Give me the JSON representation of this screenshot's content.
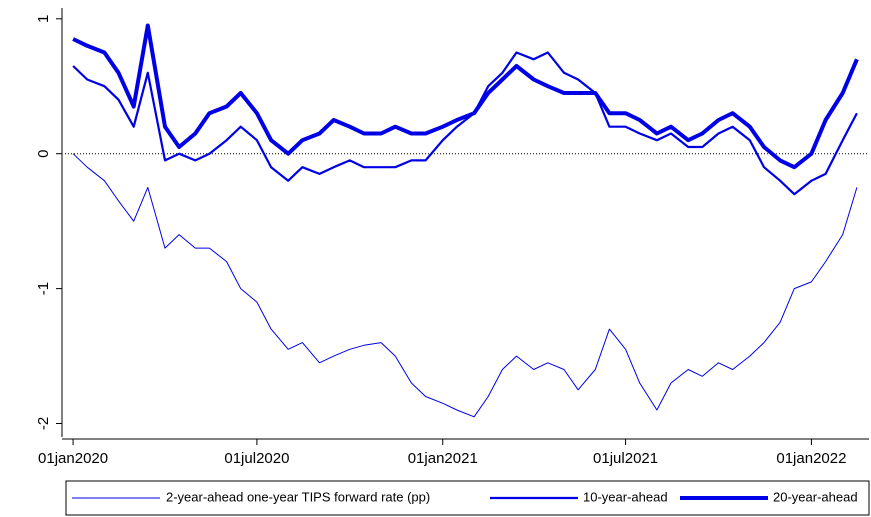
{
  "chart_data": {
    "type": "line",
    "x": [
      "2020-01-01",
      "2020-01-15",
      "2020-02-01",
      "2020-02-15",
      "2020-03-01",
      "2020-03-15",
      "2020-04-01",
      "2020-04-15",
      "2020-05-01",
      "2020-05-15",
      "2020-06-01",
      "2020-06-15",
      "2020-07-01",
      "2020-07-15",
      "2020-08-01",
      "2020-08-15",
      "2020-09-01",
      "2020-09-15",
      "2020-10-01",
      "2020-10-15",
      "2020-11-01",
      "2020-11-15",
      "2020-12-01",
      "2020-12-15",
      "2021-01-01",
      "2021-01-15",
      "2021-02-01",
      "2021-02-15",
      "2021-03-01",
      "2021-03-15",
      "2021-04-01",
      "2021-04-15",
      "2021-05-01",
      "2021-05-15",
      "2021-06-01",
      "2021-06-15",
      "2021-07-01",
      "2021-07-15",
      "2021-08-01",
      "2021-08-15",
      "2021-09-01",
      "2021-09-15",
      "2021-10-01",
      "2021-10-15",
      "2021-11-01",
      "2021-11-15",
      "2021-12-01",
      "2021-12-15",
      "2022-01-01",
      "2022-01-15",
      "2022-02-01",
      "2022-02-15"
    ],
    "series": [
      {
        "name": "2-year-ahead one-year TIPS forward rate (pp)",
        "color": "#0000e6",
        "width": 1,
        "values": [
          0,
          -0.1,
          -0.2,
          -0.35,
          -0.5,
          -0.25,
          -0.7,
          -0.6,
          -0.7,
          -0.7,
          -0.8,
          -1.0,
          -1.1,
          -1.3,
          -1.45,
          -1.4,
          -1.55,
          -1.5,
          -1.45,
          -1.42,
          -1.4,
          -1.5,
          -1.7,
          -1.8,
          -1.85,
          -1.9,
          -1.95,
          -1.8,
          -1.6,
          -1.5,
          -1.6,
          -1.55,
          -1.6,
          -1.75,
          -1.6,
          -1.3,
          -1.45,
          -1.7,
          -1.9,
          -1.7,
          -1.6,
          -1.65,
          -1.55,
          -1.6,
          -1.5,
          -1.4,
          -1.25,
          -1.0,
          -0.95,
          -0.8,
          -0.6,
          -0.25
        ]
      },
      {
        "name": "10-year-ahead",
        "color": "#0000e6",
        "width": 2.2,
        "values": [
          0.65,
          0.55,
          0.5,
          0.4,
          0.2,
          0.6,
          -0.05,
          0.0,
          -0.05,
          0.0,
          0.1,
          0.2,
          0.1,
          -0.1,
          -0.2,
          -0.1,
          -0.15,
          -0.1,
          -0.05,
          -0.1,
          -0.1,
          -0.1,
          -0.05,
          -0.05,
          0.1,
          0.2,
          0.3,
          0.5,
          0.6,
          0.75,
          0.7,
          0.75,
          0.6,
          0.55,
          0.45,
          0.2,
          0.2,
          0.15,
          0.1,
          0.15,
          0.05,
          0.05,
          0.15,
          0.2,
          0.1,
          -0.1,
          -0.2,
          -0.3,
          -0.2,
          -0.15,
          0.1,
          0.3
        ]
      },
      {
        "name": "20-year-ahead",
        "color": "#0000e6",
        "width": 4,
        "values": [
          0.85,
          0.8,
          0.75,
          0.6,
          0.35,
          0.95,
          0.2,
          0.05,
          0.15,
          0.3,
          0.35,
          0.45,
          0.3,
          0.1,
          0.0,
          0.1,
          0.15,
          0.25,
          0.2,
          0.15,
          0.15,
          0.2,
          0.15,
          0.15,
          0.2,
          0.25,
          0.3,
          0.45,
          0.55,
          0.65,
          0.55,
          0.5,
          0.45,
          0.45,
          0.45,
          0.3,
          0.3,
          0.25,
          0.15,
          0.2,
          0.1,
          0.15,
          0.25,
          0.3,
          0.2,
          0.05,
          -0.05,
          -0.1,
          0.0,
          0.25,
          0.45,
          0.7
        ]
      }
    ],
    "xlim": [
      "2019-12-24",
      "2022-02-27"
    ],
    "xticks": [
      {
        "value": "2020-01-01",
        "label": "01jan2020"
      },
      {
        "value": "2020-07-01",
        "label": "01jul2020"
      },
      {
        "value": "2021-01-01",
        "label": "01jan2021"
      },
      {
        "value": "2021-07-01",
        "label": "01jul2021"
      },
      {
        "value": "2022-01-01",
        "label": "01jan2022"
      }
    ],
    "ylim": [
      -2.1,
      1.08
    ],
    "yticks": [
      -2,
      -1,
      0,
      1
    ],
    "reference_line": 0,
    "grid": false,
    "legend": "bottom"
  }
}
